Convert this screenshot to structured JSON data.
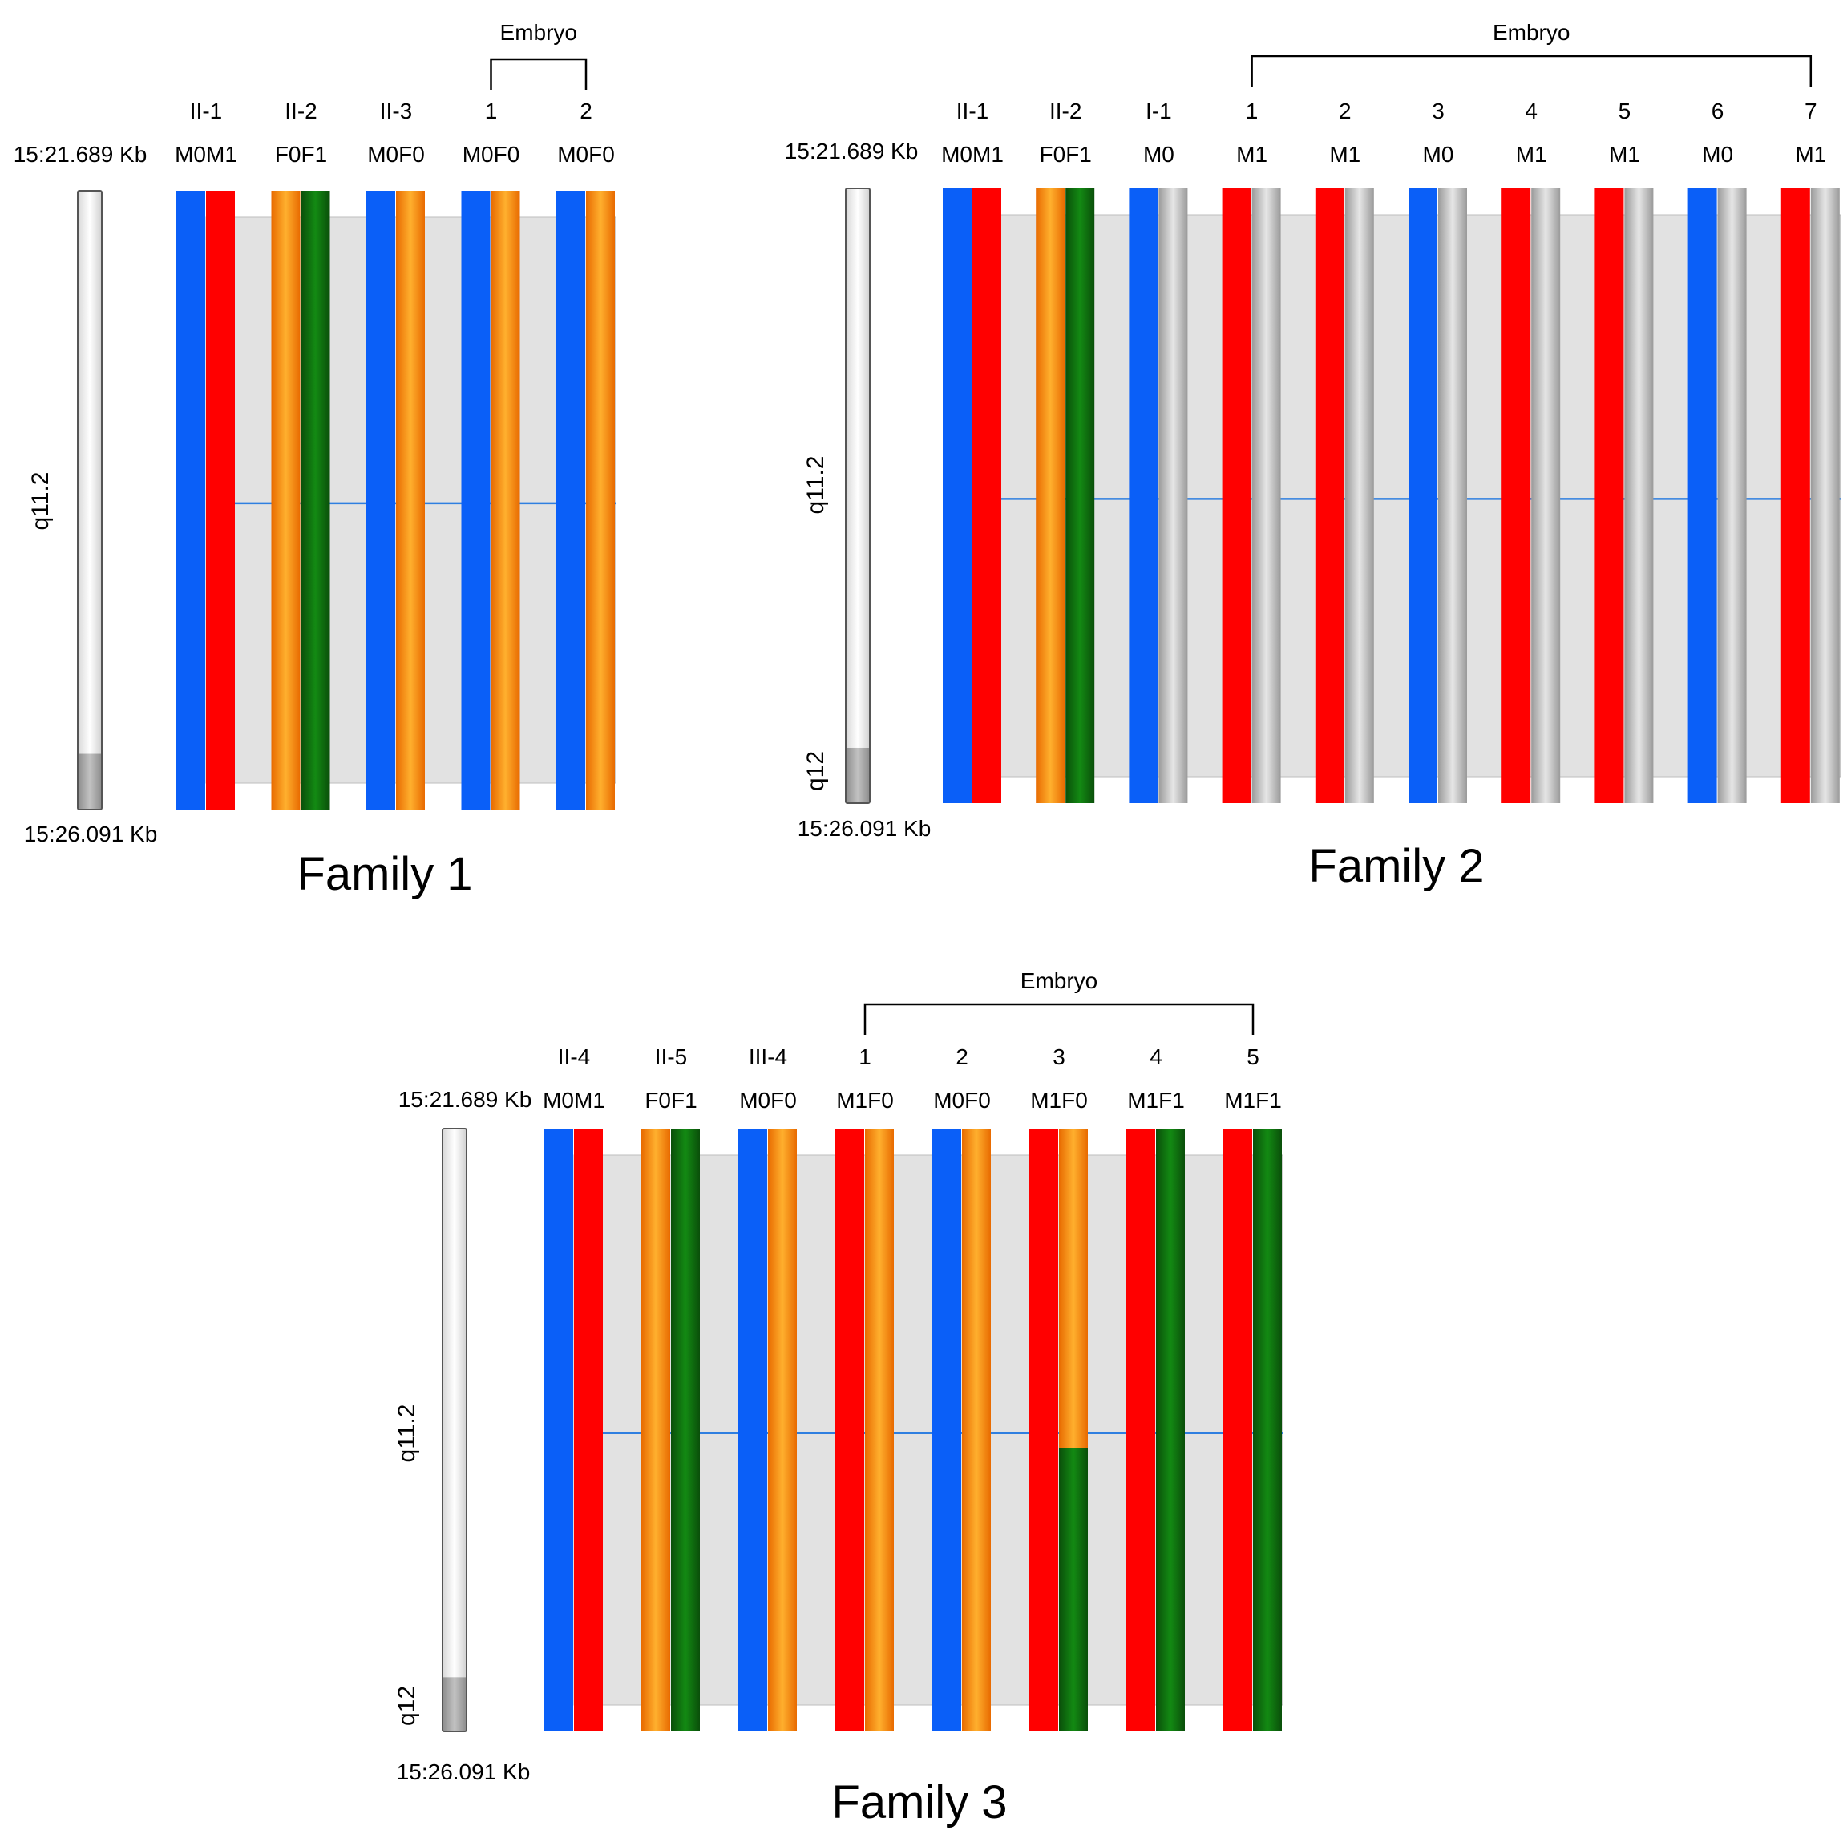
{
  "colors": {
    "M0": "#0a5ff8",
    "M1": "#ff0000",
    "F0": "#ff8a00",
    "F1": "#0d6b0d",
    "unknown": "#b5b5b5",
    "shade": "#e2e2e2",
    "marker_line": "#2f7fe0"
  },
  "families": [
    {
      "title": "Family 1",
      "start_label": "15:21.689 Kb",
      "end_label": "15:26.091 Kb",
      "band_upper": "q11.2",
      "band_lower": "",
      "embryo_label": "Embryo",
      "members": [
        {
          "id": "II-1",
          "genotype": "M0M1",
          "haplotypes": [
            [
              "M0"
            ],
            [
              "M1"
            ]
          ]
        },
        {
          "id": "II-2",
          "genotype": "F0F1",
          "haplotypes": [
            [
              "F0"
            ],
            [
              "F1"
            ]
          ]
        },
        {
          "id": "II-3",
          "genotype": "M0F0",
          "haplotypes": [
            [
              "M0"
            ],
            [
              "F0"
            ]
          ]
        },
        {
          "id": "1",
          "genotype": "M0F0",
          "embryo": true,
          "haplotypes": [
            [
              "M0"
            ],
            [
              "F0"
            ]
          ]
        },
        {
          "id": "2",
          "genotype": "M0F0",
          "embryo": true,
          "haplotypes": [
            [
              "M0"
            ],
            [
              "F0"
            ]
          ]
        }
      ]
    },
    {
      "title": "Family 2",
      "start_label": "15:21.689 Kb",
      "end_label": "15:26.091 Kb",
      "band_upper": "q11.2",
      "band_lower": "q12",
      "embryo_label": "Embryo",
      "members": [
        {
          "id": "II-1",
          "genotype": "M0M1",
          "haplotypes": [
            [
              "M0"
            ],
            [
              "M1"
            ]
          ]
        },
        {
          "id": "II-2",
          "genotype": "F0F1",
          "haplotypes": [
            [
              "F0"
            ],
            [
              "F1"
            ]
          ]
        },
        {
          "id": "I-1",
          "genotype": "M0",
          "haplotypes": [
            [
              "M0"
            ],
            [
              "unknown"
            ]
          ]
        },
        {
          "id": "1",
          "genotype": "M1",
          "embryo": true,
          "haplotypes": [
            [
              "M1"
            ],
            [
              "unknown"
            ]
          ]
        },
        {
          "id": "2",
          "genotype": "M1",
          "embryo": true,
          "haplotypes": [
            [
              "M1"
            ],
            [
              "unknown"
            ]
          ]
        },
        {
          "id": "3",
          "genotype": "M0",
          "embryo": true,
          "haplotypes": [
            [
              "M0"
            ],
            [
              "unknown"
            ]
          ]
        },
        {
          "id": "4",
          "genotype": "M1",
          "embryo": true,
          "haplotypes": [
            [
              "M1"
            ],
            [
              "unknown"
            ]
          ]
        },
        {
          "id": "5",
          "genotype": "M1",
          "embryo": true,
          "haplotypes": [
            [
              "M1"
            ],
            [
              "unknown"
            ]
          ]
        },
        {
          "id": "6",
          "genotype": "M0",
          "embryo": true,
          "haplotypes": [
            [
              "M0"
            ],
            [
              "unknown"
            ]
          ]
        },
        {
          "id": "7",
          "genotype": "M1",
          "embryo": true,
          "haplotypes": [
            [
              "M1"
            ],
            [
              "unknown"
            ]
          ]
        }
      ]
    },
    {
      "title": "Family 3",
      "start_label": "15:21.689 Kb",
      "end_label": "15:26.091 Kb",
      "band_upper": "q11.2",
      "band_lower": "q12",
      "embryo_label": "Embryo",
      "members": [
        {
          "id": "II-4",
          "genotype": "M0M1",
          "haplotypes": [
            [
              "M0"
            ],
            [
              "M1"
            ]
          ]
        },
        {
          "id": "II-5",
          "genotype": "F0F1",
          "haplotypes": [
            [
              "F0"
            ],
            [
              "F1"
            ]
          ]
        },
        {
          "id": "III-4",
          "genotype": "M0F0",
          "haplotypes": [
            [
              "M0"
            ],
            [
              "F0"
            ]
          ]
        },
        {
          "id": "1",
          "genotype": "M1F0",
          "embryo": true,
          "haplotypes": [
            [
              "M1"
            ],
            [
              "F0"
            ]
          ]
        },
        {
          "id": "2",
          "genotype": "M0F0",
          "embryo": true,
          "haplotypes": [
            [
              "M0"
            ],
            [
              "F0"
            ]
          ]
        },
        {
          "id": "3",
          "genotype": "M1F0",
          "embryo": true,
          "haplotypes": [
            [
              "M1"
            ],
            [
              "F0",
              "F1"
            ]
          ],
          "recombination_fraction": 0.53
        },
        {
          "id": "4",
          "genotype": "M1F1",
          "embryo": true,
          "haplotypes": [
            [
              "M1"
            ],
            [
              "F1"
            ]
          ]
        },
        {
          "id": "5",
          "genotype": "M1F1",
          "embryo": true,
          "haplotypes": [
            [
              "M1"
            ],
            [
              "F1"
            ]
          ]
        }
      ]
    }
  ]
}
